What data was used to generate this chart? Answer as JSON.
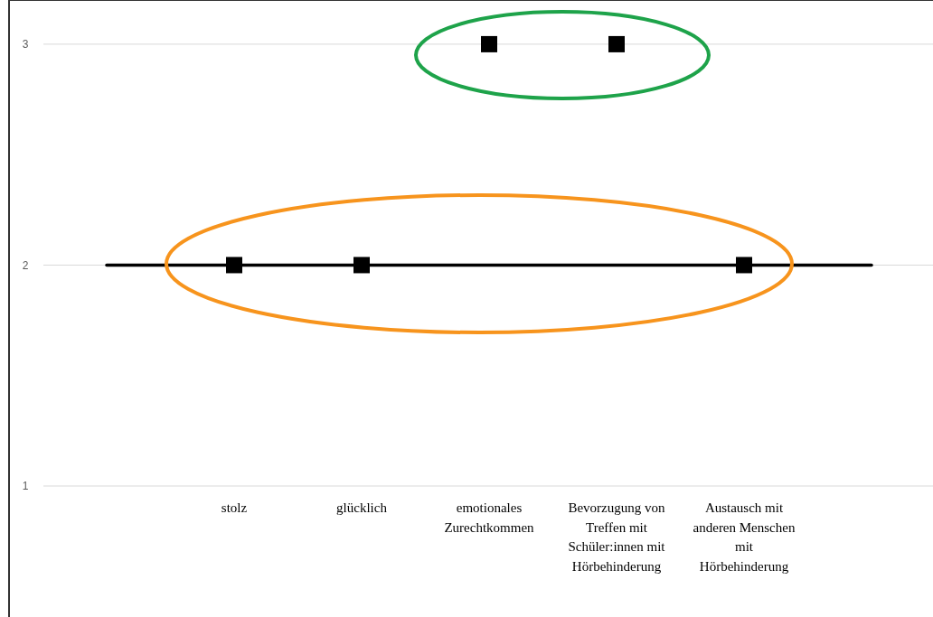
{
  "chart_data": {
    "type": "scatter",
    "categories": [
      null,
      "stolz",
      "glücklich",
      "emotionales Zurechtkommen",
      "Bevorzugung von Treffen mit Schüler:innen mit Hörbehinderung",
      "Austausch mit anderen Menschen mit Hörbehinderung",
      null
    ],
    "series": [
      {
        "type": "line",
        "color": "#000000",
        "marker": "none",
        "values": [
          2,
          2,
          2,
          2,
          2,
          2,
          2
        ]
      },
      {
        "color": "#000000",
        "marker": "square",
        "values": [
          null,
          2,
          2,
          3,
          3,
          2,
          null
        ]
      }
    ],
    "ylim": [
      1,
      3.2
    ],
    "yticks": [
      1,
      2,
      3
    ],
    "grid": "y"
  }
}
